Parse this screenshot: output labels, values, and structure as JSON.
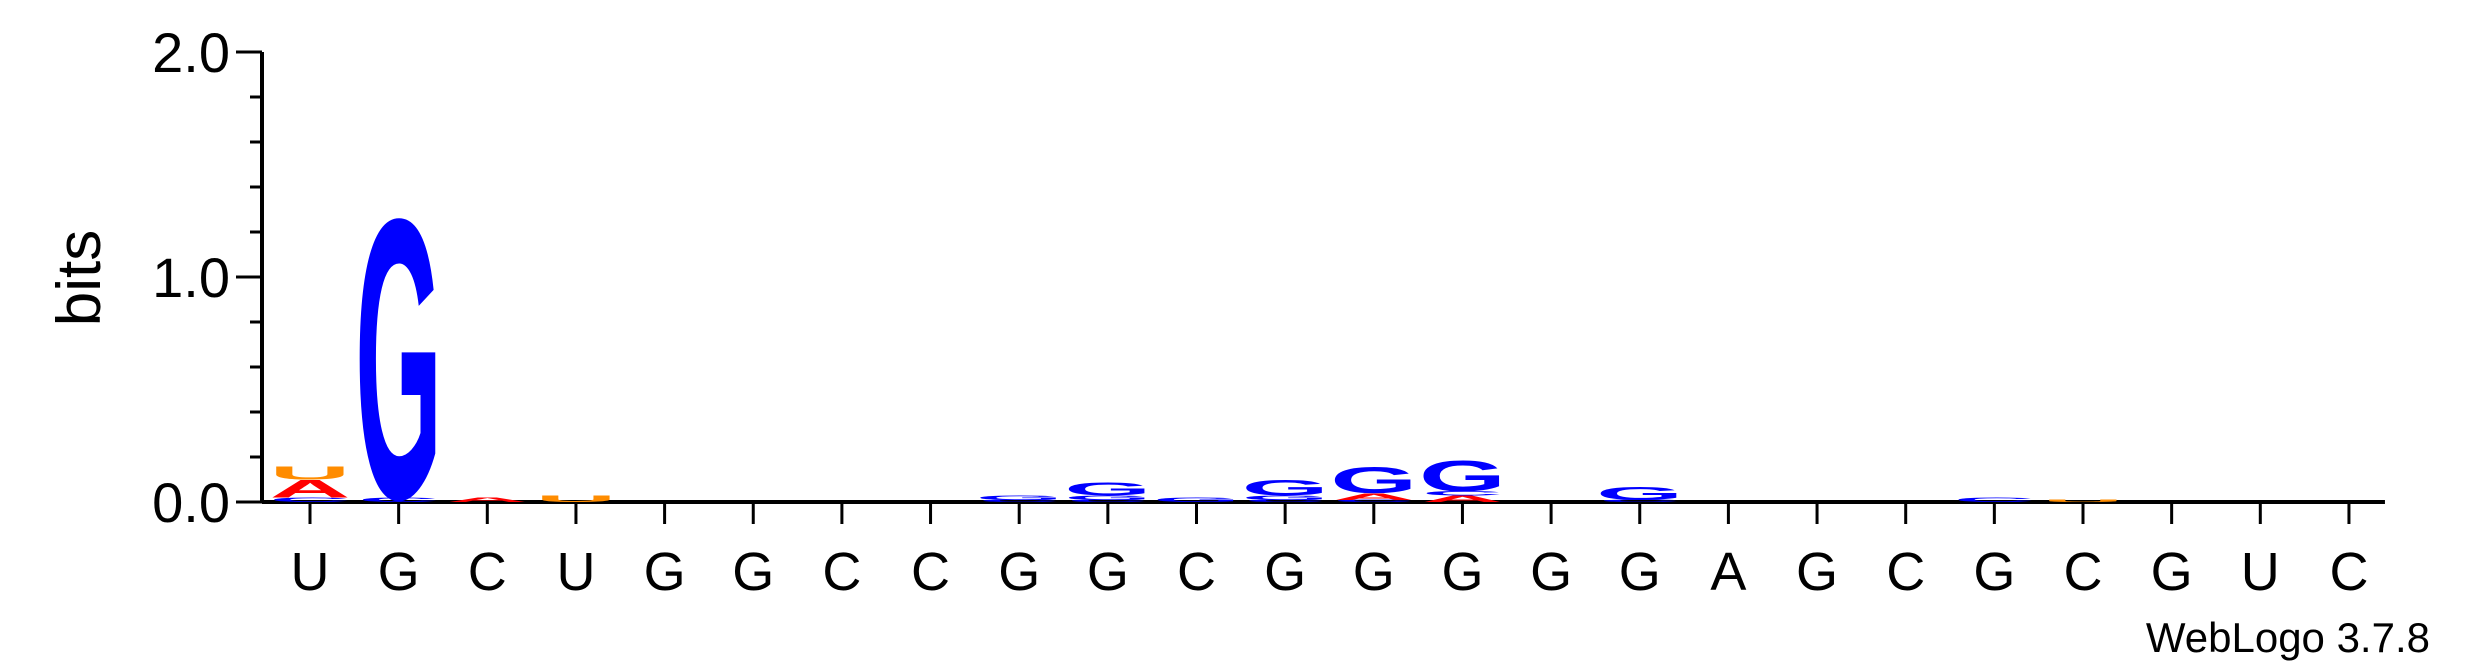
{
  "chart_data": {
    "type": "sequence-logo",
    "ylabel": "bits",
    "ylim": [
      0,
      2.0
    ],
    "y_ticks": [
      {
        "value": 0.0,
        "label": "0.0"
      },
      {
        "value": 1.0,
        "label": "1.0"
      },
      {
        "value": 2.0,
        "label": "2.0"
      }
    ],
    "y_minor_step": 0.2,
    "x_labels": [
      "U",
      "G",
      "C",
      "U",
      "G",
      "G",
      "C",
      "C",
      "G",
      "G",
      "C",
      "G",
      "G",
      "G",
      "G",
      "G",
      "A",
      "G",
      "C",
      "G",
      "C",
      "G",
      "U",
      "C"
    ],
    "colors": {
      "A": "#ff0000",
      "C": "#0000ff",
      "G": "#0000ff",
      "U": "#ff8c00"
    },
    "positions": [
      {
        "stack": [
          {
            "letter": "C",
            "bits": 0.02
          },
          {
            "letter": "A",
            "bits": 0.08
          },
          {
            "letter": "U",
            "bits": 0.06
          }
        ]
      },
      {
        "stack": [
          {
            "letter": "C",
            "bits": 0.02
          },
          {
            "letter": "G",
            "bits": 1.28
          }
        ]
      },
      {
        "stack": [
          {
            "letter": "A",
            "bits": 0.02
          }
        ]
      },
      {
        "stack": [
          {
            "letter": "U",
            "bits": 0.03
          }
        ]
      },
      {
        "stack": []
      },
      {
        "stack": []
      },
      {
        "stack": []
      },
      {
        "stack": []
      },
      {
        "stack": [
          {
            "letter": "C",
            "bits": 0.01
          },
          {
            "letter": "G",
            "bits": 0.02
          }
        ]
      },
      {
        "stack": [
          {
            "letter": "C",
            "bits": 0.01
          },
          {
            "letter": "G",
            "bits": 0.02
          },
          {
            "letter": "G",
            "bits": 0.06
          }
        ]
      },
      {
        "stack": [
          {
            "letter": "G",
            "bits": 0.02
          }
        ]
      },
      {
        "stack": [
          {
            "letter": "C",
            "bits": 0.01
          },
          {
            "letter": "G",
            "bits": 0.02
          },
          {
            "letter": "G",
            "bits": 0.07
          }
        ]
      },
      {
        "stack": [
          {
            "letter": "C",
            "bits": 0.01
          },
          {
            "letter": "A",
            "bits": 0.03
          },
          {
            "letter": "G",
            "bits": 0.12
          }
        ]
      },
      {
        "stack": [
          {
            "letter": "A",
            "bits": 0.03
          },
          {
            "letter": "C",
            "bits": 0.02
          },
          {
            "letter": "G",
            "bits": 0.14
          }
        ]
      },
      {
        "stack": []
      },
      {
        "stack": [
          {
            "letter": "C",
            "bits": 0.01
          },
          {
            "letter": "G",
            "bits": 0.06
          }
        ]
      },
      {
        "stack": []
      },
      {
        "stack": []
      },
      {
        "stack": []
      },
      {
        "stack": [
          {
            "letter": "C",
            "bits": 0.02
          }
        ]
      },
      {
        "stack": [
          {
            "letter": "U",
            "bits": 0.01
          }
        ]
      },
      {
        "stack": []
      },
      {
        "stack": []
      },
      {
        "stack": []
      }
    ]
  },
  "credit": "WebLogo 3.7.8"
}
